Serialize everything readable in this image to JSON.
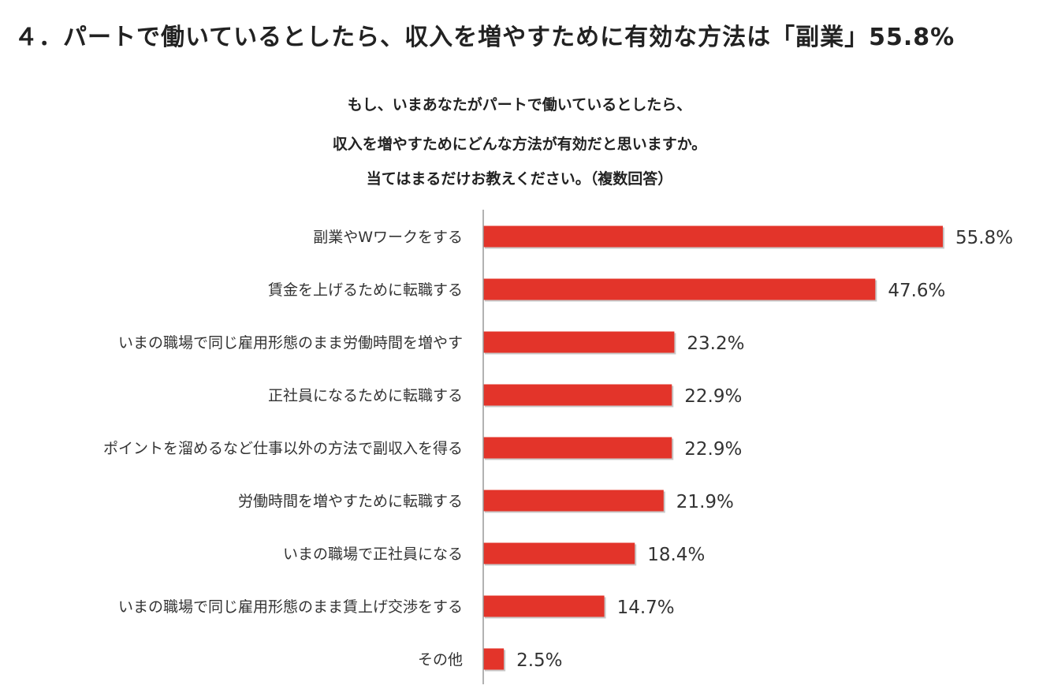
{
  "heading": "４．パートで働いているとしたら、収入を増やすために有効な方法は「副業」55.8%",
  "chart_data": {
    "type": "bar",
    "orientation": "horizontal",
    "title_lines": [
      "もし、いまあなたがパートで働いているとしたら、",
      "収入を増やすためにどんな方法が有効だと思いますか。",
      "当てはまるだけお教えください。（複数回答）"
    ],
    "categories": [
      "副業やWワークをする",
      "賃金を上げるために転職する",
      "いまの職場で同じ雇用形態のまま労働時間を増やす",
      "正社員になるために転職する",
      "ポイントを溜めるなど仕事以外の方法で副収入を得る",
      "労働時間を増やすために転職する",
      "いまの職場で正社員になる",
      "いまの職場で同じ雇用形態のまま賃上げ交渉をする",
      "その他"
    ],
    "values": [
      55.8,
      47.6,
      23.2,
      22.9,
      22.9,
      21.9,
      18.4,
      14.7,
      2.5
    ],
    "value_labels": [
      "55.8%",
      "47.6%",
      "23.2%",
      "22.9%",
      "22.9%",
      "21.9%",
      "18.4%",
      "14.7%",
      "2.5%"
    ],
    "unit": "%",
    "xlim": [
      0,
      56
    ],
    "bar_color": "#e3342a",
    "axis_color": "#999999",
    "grid": false,
    "legend": "none"
  }
}
